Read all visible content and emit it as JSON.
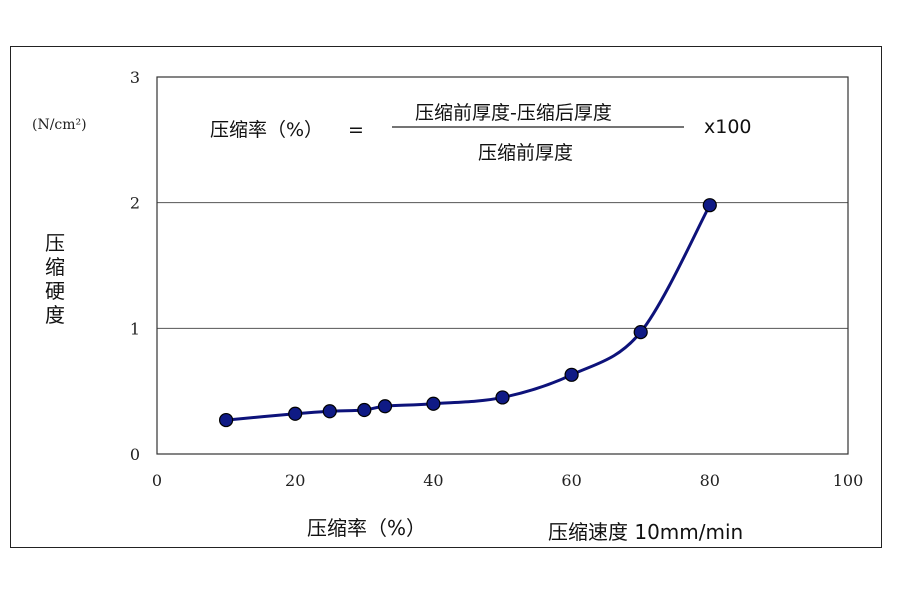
{
  "chart_data": {
    "type": "line",
    "y_label_chars": [
      "压",
      "缩",
      "硬",
      "度"
    ],
    "y_unit": "(N/cm²)",
    "x_label": "压缩率（%）",
    "speed_note": "压缩速度 10mm/min",
    "formula": {
      "lhs": "压缩率（%）",
      "equals": "=",
      "numerator": "压缩前厚度-压缩后厚度",
      "denominator": "压缩前厚度",
      "multiplier": "x100"
    },
    "xlim": [
      0,
      100
    ],
    "ylim": [
      0,
      3
    ],
    "x_ticks": [
      0,
      20,
      40,
      60,
      80,
      100
    ],
    "y_ticks": [
      0,
      1,
      2,
      3
    ],
    "grid_y": true,
    "series": [
      {
        "x": [
          10,
          20,
          25,
          30,
          33,
          40,
          50,
          60,
          70,
          80
        ],
        "y": [
          0.27,
          0.32,
          0.34,
          0.35,
          0.38,
          0.4,
          0.45,
          0.63,
          0.97,
          1.98
        ]
      }
    ],
    "colors": {
      "line": "#0d127a",
      "marker": "#0f1a85",
      "grid": "#555555"
    }
  }
}
